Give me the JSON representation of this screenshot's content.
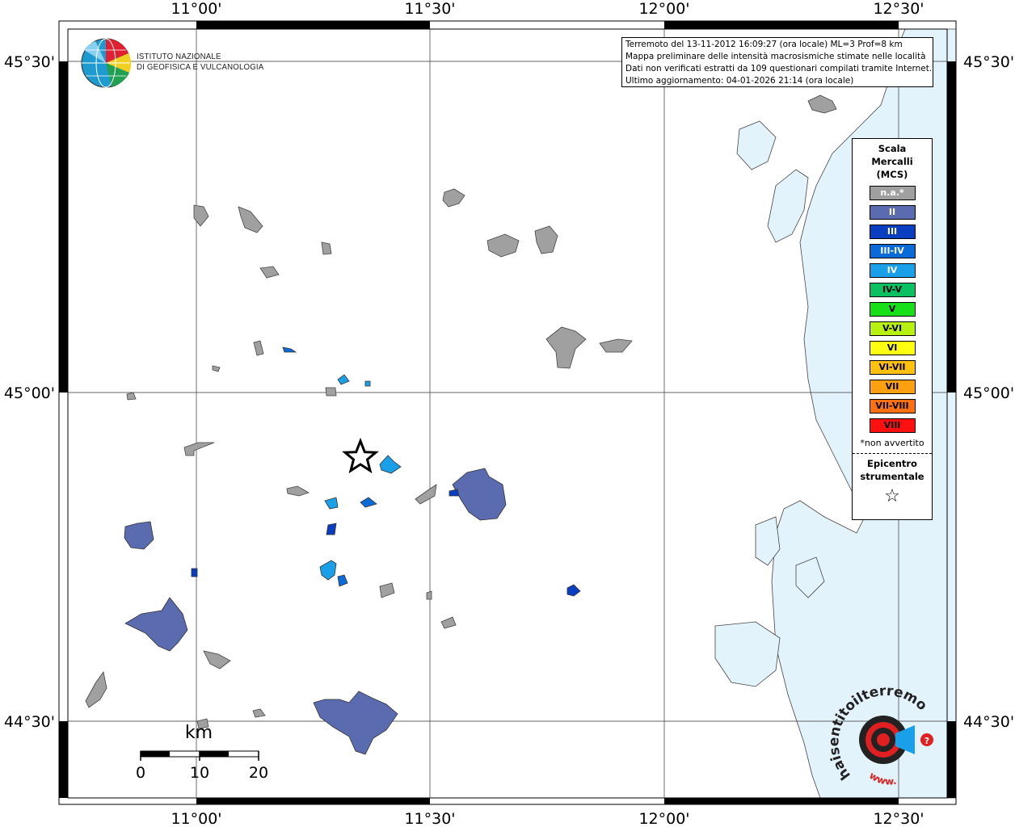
{
  "grid": {
    "top_labels": [
      "11°00'",
      "11°30'",
      "12°00'",
      "12°30'"
    ],
    "bottom_labels": [
      "11°00'",
      "11°30'",
      "12°00'",
      "12°30'"
    ],
    "left_labels": [
      "45°30'",
      "45°00'",
      "44°30'"
    ],
    "right_labels": [
      "45°30'",
      "45°00'",
      "44°30'"
    ]
  },
  "info": {
    "line1": "Terremoto del 13-11-2012 16:09:27 (ora locale) ML=3 Prof=8 km",
    "line2": "Mappa preliminare delle intensità macrosismiche stimate nelle località",
    "line3": "Dati non verificati estratti da 109 questionari compilati tramite Internet.",
    "line4": "Ultimo aggiornamento: 04-01-2026 21:14 (ora locale)"
  },
  "logo": {
    "line1": "ISTITUTO NAZIONALE",
    "line2": "DI GEOFISICA E VULCANOLOGIA"
  },
  "legend": {
    "title1": "Scala",
    "title2": "Mercalli",
    "title3": "(MCS)",
    "items": [
      {
        "label": "n.a.*",
        "color": "#a0a0a0",
        "text_color": "#ffffff"
      },
      {
        "label": "II",
        "color": "#5b6bb0",
        "text_color": "#ffffff"
      },
      {
        "label": "III",
        "color": "#0a3ec0",
        "text_color": "#ffffff"
      },
      {
        "label": "III-IV",
        "color": "#0a6ad8",
        "text_color": "#ffffff"
      },
      {
        "label": "IV",
        "color": "#1aa0e8",
        "text_color": "#ffffff"
      },
      {
        "label": "IV-V",
        "color": "#0ac060",
        "text_color": "#000000"
      },
      {
        "label": "V",
        "color": "#18e018",
        "text_color": "#000000"
      },
      {
        "label": "V-VI",
        "color": "#b8f010",
        "text_color": "#000000"
      },
      {
        "label": "VI",
        "color": "#ffff10",
        "text_color": "#000000"
      },
      {
        "label": "VI-VII",
        "color": "#ffc010",
        "text_color": "#000000"
      },
      {
        "label": "VII",
        "color": "#ffa010",
        "text_color": "#000000"
      },
      {
        "label": "VII-VIII",
        "color": "#ff7010",
        "text_color": "#000000"
      },
      {
        "label": "VIII",
        "color": "#ff1010",
        "text_color": "#000000"
      }
    ],
    "note": "*non avvertito",
    "epi1": "Epicentro",
    "epi2": "strumentale",
    "star": "☆"
  },
  "scale_bar": {
    "unit": "km",
    "ticks": [
      "0",
      "10",
      "20"
    ]
  },
  "watermark": {
    "text": "haisentitoilterremoto.it",
    "prefix": "www."
  },
  "colors": {
    "sea": "#e3f3fc",
    "na": "#a0a0a0",
    "ii": "#5b6bb0",
    "iii": "#0a3ec0",
    "iii_iv": "#0a6ad8",
    "iv": "#1aa0e8"
  }
}
